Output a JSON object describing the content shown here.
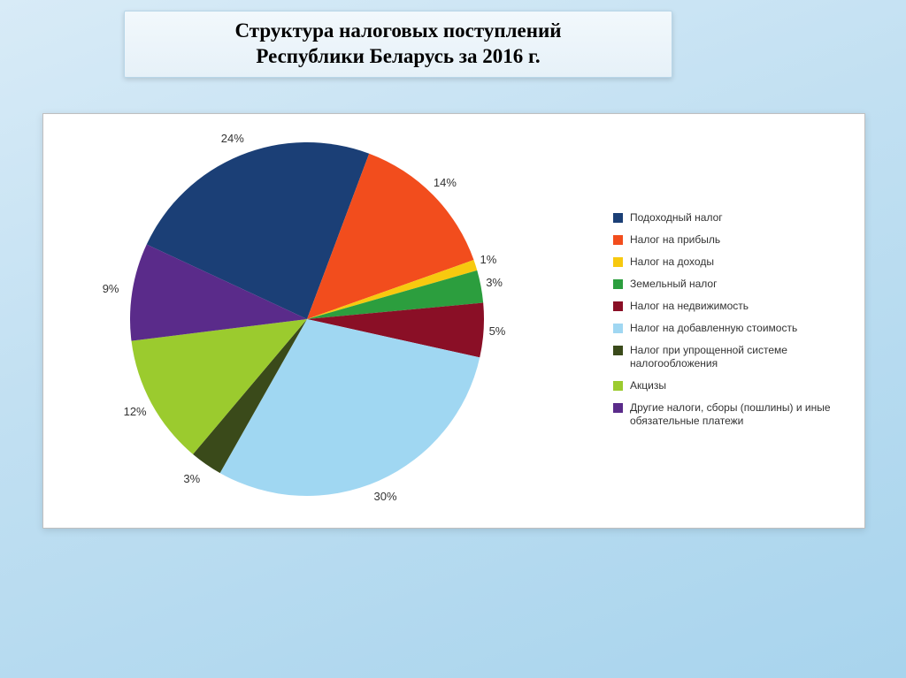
{
  "background": {
    "gradient_from": "#d8ebf7",
    "gradient_to": "#a8d4ed"
  },
  "title": {
    "line1": "Структура налоговых поступлений",
    "line2": "Республики Беларусь за 2016 г.",
    "fontsize": 23,
    "border_color": "#b8d6e8",
    "bg_from": "#f2f8fc",
    "bg_to": "#e6f1f8"
  },
  "pie_chart": {
    "type": "pie",
    "start_angle_deg": -155,
    "direction": "clockwise",
    "radius": 200,
    "label_fontsize": 13,
    "label_color": "#333333",
    "background_color": "#ffffff",
    "panel_border_color": "#bfbfbf",
    "slices": [
      {
        "label": "Подоходный налог",
        "value": 24,
        "color": "#1b3f76",
        "show_label": "24%"
      },
      {
        "label": "Налог на прибыль",
        "value": 14,
        "color": "#f24d1d",
        "show_label": "14%"
      },
      {
        "label": "Налог на доходы",
        "value": 1,
        "color": "#f7c90f",
        "show_label": "1%"
      },
      {
        "label": "Земельный налог",
        "value": 3,
        "color": "#2c9e3e",
        "show_label": "3%"
      },
      {
        "label": "Налог на недвижимость",
        "value": 5,
        "color": "#8a0f26",
        "show_label": "5%"
      },
      {
        "label": "Налог на добавленную стоимость",
        "value": 30,
        "color": "#a0d7f2",
        "show_label": "30%"
      },
      {
        "label": "Налог при упрощенной системе налогообложения",
        "value": 3,
        "color": "#3a4a1a",
        "show_label": "3%"
      },
      {
        "label": "Акцизы",
        "value": 12,
        "color": "#9bcb2e",
        "show_label": "12%"
      },
      {
        "label": "Другие налоги, сборы (пошлины) и иные обязательные платежи",
        "value": 9,
        "color": "#5a2b8a",
        "show_label": "9%"
      }
    ],
    "legend": {
      "fontsize": 12,
      "marker_size": 11,
      "text_color": "#333333"
    }
  }
}
